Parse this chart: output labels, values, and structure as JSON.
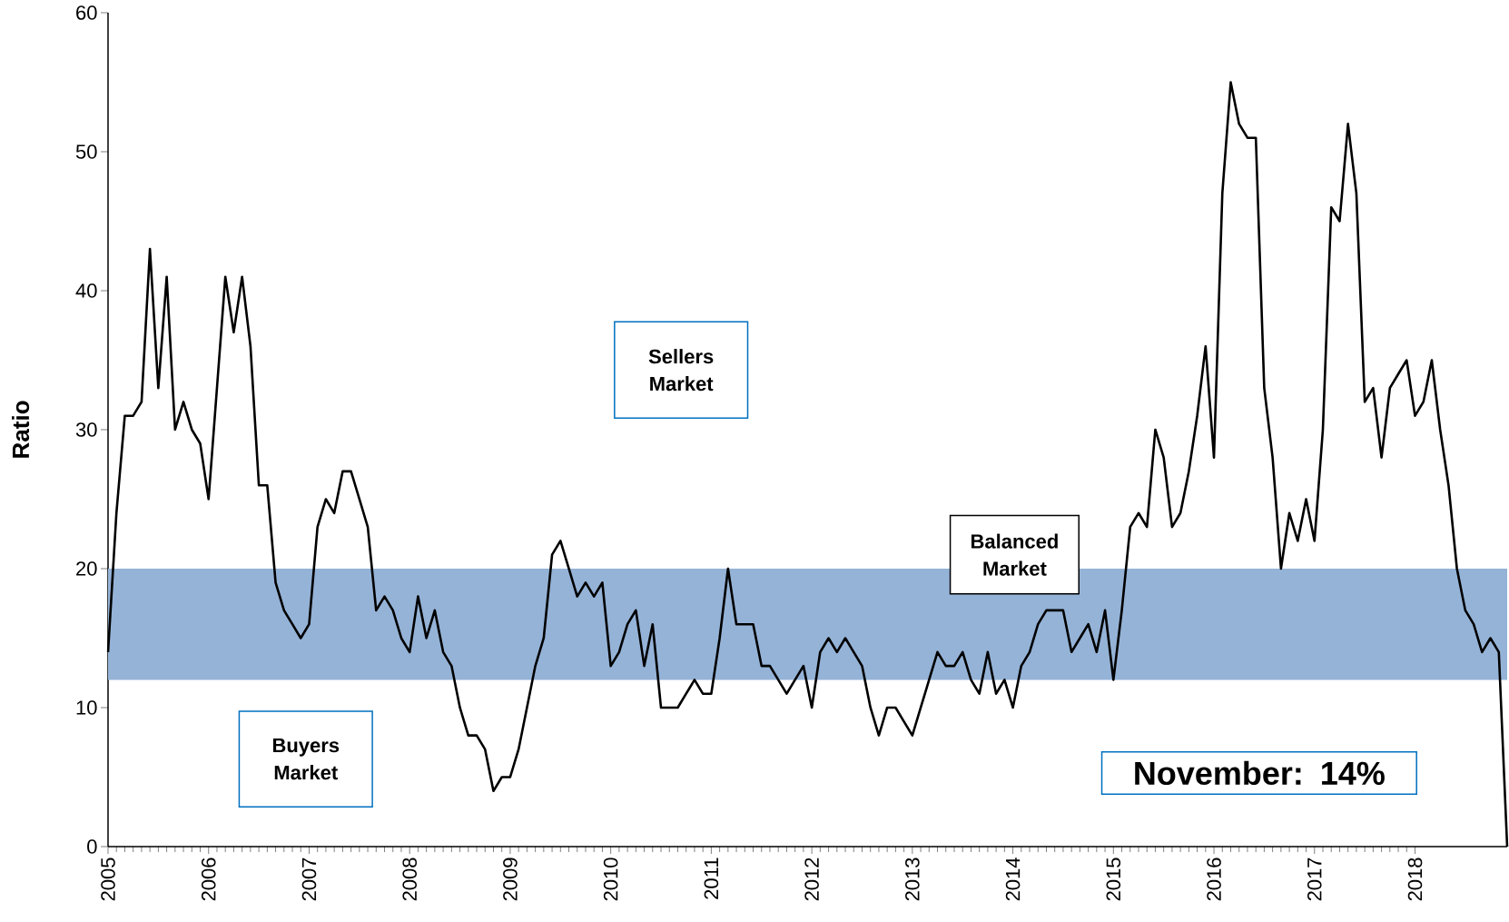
{
  "chart_data": {
    "type": "line",
    "ylabel": "Ratio",
    "x": [
      "2005-01",
      "2005-02",
      "2005-03",
      "2005-04",
      "2005-05",
      "2005-06",
      "2005-07",
      "2005-08",
      "2005-09",
      "2005-10",
      "2005-11",
      "2005-12",
      "2006-01",
      "2006-02",
      "2006-03",
      "2006-04",
      "2006-05",
      "2006-06",
      "2006-07",
      "2006-08",
      "2006-09",
      "2006-10",
      "2006-11",
      "2006-12",
      "2007-01",
      "2007-02",
      "2007-03",
      "2007-04",
      "2007-05",
      "2007-06",
      "2007-07",
      "2007-08",
      "2007-09",
      "2007-10",
      "2007-11",
      "2007-12",
      "2008-01",
      "2008-02",
      "2008-03",
      "2008-04",
      "2008-05",
      "2008-06",
      "2008-07",
      "2008-08",
      "2008-09",
      "2008-10",
      "2008-11",
      "2008-12",
      "2009-01",
      "2009-02",
      "2009-03",
      "2009-04",
      "2009-05",
      "2009-06",
      "2009-07",
      "2009-08",
      "2009-09",
      "2009-10",
      "2009-11",
      "2009-12",
      "2010-01",
      "2010-02",
      "2010-03",
      "2010-04",
      "2010-05",
      "2010-06",
      "2010-07",
      "2010-08",
      "2010-09",
      "2010-10",
      "2010-11",
      "2010-12",
      "2011-01",
      "2011-02",
      "2011-03",
      "2011-04",
      "2011-05",
      "2011-06",
      "2011-07",
      "2011-08",
      "2011-09",
      "2011-10",
      "2011-11",
      "2011-12",
      "2012-01",
      "2012-02",
      "2012-03",
      "2012-04",
      "2012-05",
      "2012-06",
      "2012-07",
      "2012-08",
      "2012-09",
      "2012-10",
      "2012-11",
      "2012-12",
      "2013-01",
      "2013-02",
      "2013-03",
      "2013-04",
      "2013-05",
      "2013-06",
      "2013-07",
      "2013-08",
      "2013-09",
      "2013-10",
      "2013-11",
      "2013-12",
      "2014-01",
      "2014-02",
      "2014-03",
      "2014-04",
      "2014-05",
      "2014-06",
      "2014-07",
      "2014-08",
      "2014-09",
      "2014-10",
      "2014-11",
      "2014-12",
      "2015-01",
      "2015-02",
      "2015-03",
      "2015-04",
      "2015-05",
      "2015-06",
      "2015-07",
      "2015-08",
      "2015-09",
      "2015-10",
      "2015-11",
      "2015-12",
      "2016-01",
      "2016-02",
      "2016-03",
      "2016-04",
      "2016-05",
      "2016-06",
      "2016-07",
      "2016-08",
      "2016-09",
      "2016-10",
      "2016-11",
      "2016-12",
      "2017-01",
      "2017-02",
      "2017-03",
      "2017-04",
      "2017-05",
      "2017-06",
      "2017-07",
      "2017-08",
      "2017-09",
      "2017-10",
      "2017-11",
      "2017-12",
      "2018-01",
      "2018-02",
      "2018-03",
      "2018-04",
      "2018-05",
      "2018-06",
      "2018-07",
      "2018-08",
      "2018-09",
      "2018-10",
      "2018-11",
      "2018-12"
    ],
    "series": [
      {
        "color": "#000000",
        "values": [
          14,
          24,
          31,
          31,
          32,
          43,
          33,
          41,
          30,
          32,
          30,
          29,
          25,
          33,
          41,
          37,
          41,
          36,
          26,
          26,
          19,
          17,
          16,
          15,
          16,
          23,
          25,
          24,
          27,
          27,
          25,
          23,
          17,
          18,
          17,
          15,
          14,
          18,
          15,
          17,
          14,
          13,
          10,
          8,
          8,
          7,
          4,
          5,
          5,
          7,
          10,
          13,
          15,
          21,
          22,
          20,
          18,
          19,
          18,
          19,
          13,
          14,
          16,
          17,
          13,
          16,
          10,
          10,
          10,
          11,
          12,
          11,
          11,
          15,
          20,
          16,
          16,
          16,
          13,
          13,
          12,
          11,
          12,
          13,
          10,
          14,
          15,
          14,
          15,
          14,
          13,
          10,
          8,
          10,
          10,
          9,
          8,
          10,
          12,
          14,
          13,
          13,
          14,
          12,
          11,
          14,
          11,
          12,
          10,
          13,
          14,
          16,
          17,
          17,
          17,
          14,
          15,
          16,
          14,
          17,
          12,
          17,
          23,
          24,
          23,
          30,
          28,
          23,
          24,
          27,
          31,
          36,
          28,
          47,
          55,
          52,
          51,
          51,
          33,
          28,
          20,
          24,
          22,
          25,
          22,
          30,
          46,
          45,
          52,
          47,
          32,
          33,
          28,
          33,
          34,
          35,
          31,
          32,
          35,
          30,
          26,
          20,
          17,
          16,
          14,
          15,
          14,
          0
        ]
      }
    ],
    "xlim": [
      "2005-01",
      "2018-12"
    ],
    "xticks": [
      "2005",
      "2006",
      "2007",
      "2008",
      "2009",
      "2010",
      "2011",
      "2012",
      "2013",
      "2014",
      "2015",
      "2016",
      "2017",
      "2018"
    ],
    "ylim": [
      0,
      60
    ],
    "yticks": [
      0,
      10,
      20,
      30,
      40,
      50,
      60
    ],
    "bands": [
      {
        "axis": "y",
        "from": 12,
        "to": 20,
        "color": "#95b3d7"
      }
    ],
    "annotations": [
      "Sellers Market",
      "Buyers Market",
      "Balanced Market",
      "November: 14%"
    ],
    "grid": false
  }
}
